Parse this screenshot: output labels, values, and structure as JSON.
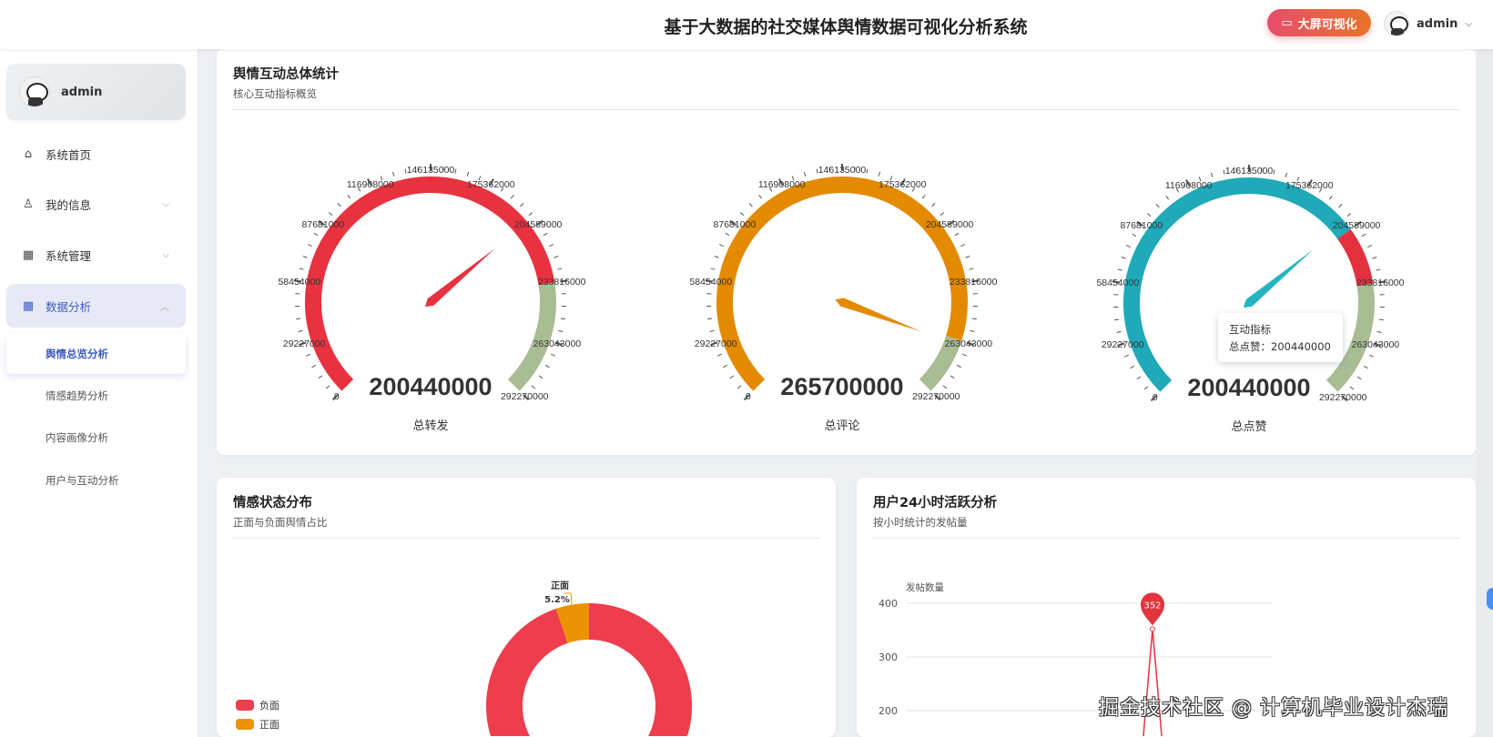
{
  "header": {
    "title": "基于大数据的社交媒体舆情数据可视化分析系统",
    "big_screen_button": "大屏可视化",
    "big_screen_icon": "monitor-icon",
    "username": "admin"
  },
  "sidebar": {
    "user": "admin",
    "items": [
      {
        "label": "系统首页",
        "icon": "home-icon"
      },
      {
        "label": "我的信息",
        "icon": "user-icon"
      },
      {
        "label": "系统管理",
        "icon": "grid-icon"
      },
      {
        "label": "数据分析",
        "icon": "grid-icon"
      }
    ],
    "sub_items": [
      {
        "label": "舆情总览分析"
      },
      {
        "label": "情感趋势分析"
      },
      {
        "label": "内容画像分析"
      },
      {
        "label": "用户与互动分析"
      }
    ]
  },
  "overview": {
    "title": "舆情互动总体统计",
    "subtitle": "核心互动指标概览",
    "tooltip": {
      "title": "互动指标",
      "line": "总点赞：200440000"
    }
  },
  "sentiment": {
    "title": "情感状态分布",
    "subtitle": "正面与负面舆情占比"
  },
  "activity": {
    "title": "用户24小时活跃分析",
    "subtitle": "按小时统计的发帖量"
  },
  "watermark": "掘金技术社区 @ 计算机毕业设计杰瑞",
  "chart_data": [
    {
      "type": "gauge",
      "name": "总转发",
      "value": 200440000,
      "value_label": "200440000",
      "min": 0,
      "max": 292270000,
      "ticks": [
        "0",
        "29227000",
        "58454000",
        "87681000",
        "116908000",
        "146135000",
        "175362000",
        "204589000",
        "233816000",
        "263043000",
        "292270000"
      ],
      "color_stops": [
        [
          0.8,
          "#e8323f"
        ],
        [
          1,
          "#a9bd95"
        ]
      ],
      "needle_color": "#e8323f"
    },
    {
      "type": "gauge",
      "name": "总评论",
      "value": 265700000,
      "value_label": "265700000",
      "min": 0,
      "max": 292270000,
      "ticks": [
        "0",
        "29227000",
        "58454000",
        "87681000",
        "116908000",
        "146135000",
        "175362000",
        "204589000",
        "233816000",
        "263043000",
        "292270000"
      ],
      "color_stops": [
        [
          0.9,
          "#e38a00"
        ],
        [
          1,
          "#a9bd95"
        ]
      ],
      "needle_color": "#e38a00"
    },
    {
      "type": "gauge",
      "name": "总点赞",
      "value": 200440000,
      "value_label": "200440000",
      "min": 0,
      "max": 292270000,
      "ticks": [
        "0",
        "29227000",
        "58454000",
        "87681000",
        "116908000",
        "146135000",
        "175362000",
        "204589000",
        "233816000",
        "263043000",
        "292270000"
      ],
      "color_stops": [
        [
          0.7,
          "#1fa9b9"
        ],
        [
          0.8,
          "#e3303e"
        ],
        [
          1,
          "#a9bd95"
        ]
      ],
      "needle_color": "#25b4c4"
    },
    {
      "type": "pie",
      "legend": [
        "负面",
        "正面"
      ],
      "values_percent": [
        94.8,
        5.2
      ],
      "colors": [
        "#ee3d4d",
        "#ec9305"
      ],
      "label": {
        "name": "正面",
        "value": "5.2%"
      },
      "legend_position": "left"
    },
    {
      "type": "line",
      "ylabel": "发帖数量",
      "yticks": [
        200,
        300,
        400
      ],
      "ylim": [
        0,
        400
      ],
      "grid": true,
      "color": "#e3343f",
      "max_point": 352
    }
  ]
}
